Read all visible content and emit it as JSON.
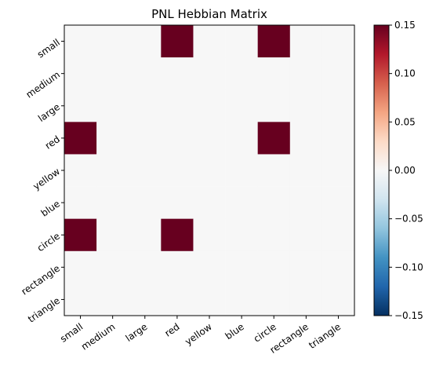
{
  "chart_data": {
    "type": "heatmap",
    "title": "PNL Hebbian Matrix",
    "rows": [
      "small",
      "medium",
      "large",
      "red",
      "yellow",
      "blue",
      "circle",
      "rectangle",
      "triangle"
    ],
    "columns": [
      "small",
      "medium",
      "large",
      "red",
      "yellow",
      "blue",
      "circle",
      "rectangle",
      "triangle"
    ],
    "values": [
      [
        0,
        0,
        0,
        0.15,
        0,
        0,
        0.15,
        0,
        0
      ],
      [
        0,
        0,
        0,
        0,
        0,
        0,
        0,
        0,
        0
      ],
      [
        0,
        0,
        0,
        0,
        0,
        0,
        0,
        0,
        0
      ],
      [
        0.15,
        0,
        0,
        0,
        0,
        0,
        0.15,
        0,
        0
      ],
      [
        0,
        0,
        0,
        0,
        0,
        0,
        0,
        0,
        0
      ],
      [
        0,
        0,
        0,
        0,
        0,
        0,
        0,
        0,
        0
      ],
      [
        0.15,
        0,
        0,
        0.15,
        0,
        0,
        0,
        0,
        0
      ],
      [
        0,
        0,
        0,
        0,
        0,
        0,
        0,
        0,
        0
      ],
      [
        0,
        0,
        0,
        0,
        0,
        0,
        0,
        0,
        0
      ]
    ],
    "colormap": "RdBu_r",
    "vmin": -0.15,
    "vmax": 0.15,
    "colorbar_ticks": [
      "0.15",
      "0.10",
      "0.05",
      "0.00",
      "−0.05",
      "−0.10",
      "−0.15"
    ],
    "colorbar_tick_values": [
      0.15,
      0.1,
      0.05,
      0.0,
      -0.05,
      -0.1,
      -0.15
    ],
    "colors": {
      "max": "#67001f",
      "zero": "#f7f7f7",
      "min": "#053061"
    }
  }
}
